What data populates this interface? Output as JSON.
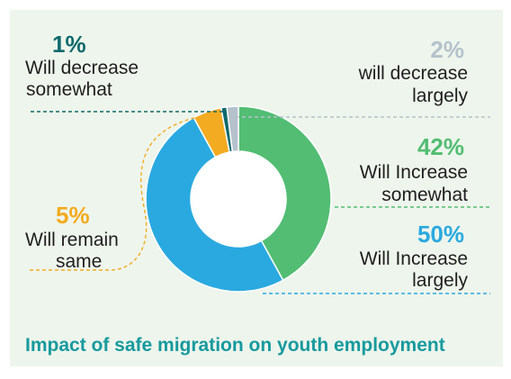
{
  "chart_data": {
    "type": "pie",
    "style": "donut",
    "title": "Impact of safe migration on youth employment",
    "slices": [
      {
        "pct_label": "42%",
        "label_line1": "Will Increase",
        "label_line2": "somewhat",
        "value": 42,
        "color": "#52bd73"
      },
      {
        "pct_label": "50%",
        "label_line1": "Will Increase",
        "label_line2": "largely",
        "value": 50,
        "color": "#2aa9e0"
      },
      {
        "pct_label": "5%",
        "label_line1": "Will remain",
        "label_line2": "same",
        "value": 5,
        "color": "#f3ab21"
      },
      {
        "pct_label": "1%",
        "label_line1": "Will decrease",
        "label_line2": "somewhat",
        "value": 1,
        "color": "#0f6a6c"
      },
      {
        "pct_label": "2%",
        "label_line1": "will decrease",
        "label_line2": "largely",
        "value": 2,
        "color": "#b5c2cc"
      }
    ]
  }
}
